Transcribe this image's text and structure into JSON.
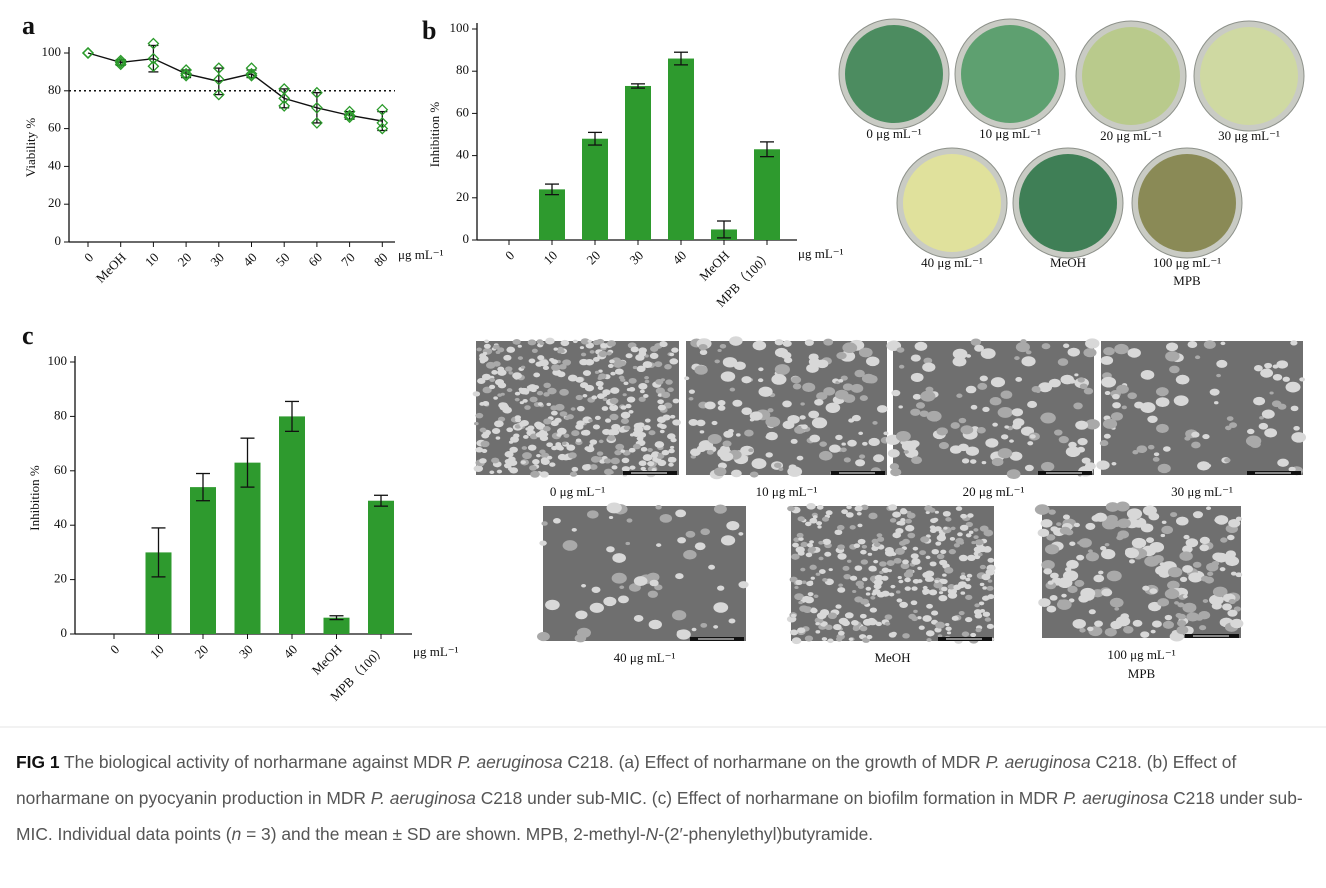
{
  "panels": [
    "a",
    "b",
    "c"
  ],
  "chart_data": [
    {
      "type": "line",
      "ylabel": "Viability %",
      "unit": "μg mL⁻¹",
      "categories": [
        "0",
        "MeOH",
        "10",
        "20",
        "30",
        "40",
        "50",
        "60",
        "70",
        "80"
      ],
      "values": [
        100,
        95,
        97,
        89,
        85,
        89,
        76,
        71,
        67,
        64
      ],
      "errors": [
        0,
        1.5,
        7,
        2,
        7,
        2,
        5,
        8,
        2,
        5
      ],
      "points": [
        [
          100,
          100,
          100
        ],
        [
          94,
          96,
          95
        ],
        [
          105,
          97,
          93
        ],
        [
          91,
          88,
          89
        ],
        [
          92,
          78,
          86
        ],
        [
          92,
          88,
          89
        ],
        [
          81,
          72,
          76
        ],
        [
          79,
          63,
          71
        ],
        [
          69,
          66,
          67
        ],
        [
          70,
          60,
          63
        ]
      ],
      "color": "#2a9a2a",
      "reference_line": 80,
      "ylim": [
        0,
        100
      ],
      "yticks": [
        0,
        20,
        40,
        60,
        80,
        100
      ]
    },
    {
      "type": "bar",
      "ylabel": "Inhibition %",
      "unit": "μg mL⁻¹",
      "categories": [
        "0",
        "10",
        "20",
        "30",
        "40",
        "MeOH",
        "MPB（100）"
      ],
      "values": [
        0,
        24,
        48,
        73,
        86,
        5,
        43
      ],
      "errors": [
        0,
        2.5,
        3,
        1,
        3,
        4,
        3.5
      ],
      "color": "#2e9a2e",
      "ylim": [
        0,
        100
      ],
      "yticks": [
        0,
        20,
        40,
        60,
        80,
        100
      ]
    },
    {
      "type": "bar",
      "ylabel": "Inhibition %",
      "unit": "μg mL⁻¹",
      "categories": [
        "0",
        "10",
        "20",
        "30",
        "40",
        "MeOH",
        "MPB（100）"
      ],
      "values": [
        0,
        30,
        54,
        63,
        80,
        6,
        49
      ],
      "errors": [
        0,
        9,
        5,
        9,
        5.5,
        0.7,
        2
      ],
      "color": "#2e9a2e",
      "ylim": [
        0,
        100
      ],
      "yticks": [
        0,
        20,
        40,
        60,
        80,
        100
      ]
    }
  ],
  "plates": [
    [
      "0 μg mL⁻¹"
    ],
    [
      "10 μg mL⁻¹"
    ],
    [
      "20 μg mL⁻¹"
    ],
    [
      "30 μg mL⁻¹"
    ],
    [
      "40 μg mL⁻¹"
    ],
    [
      "MeOH"
    ],
    [
      "100 μg mL⁻¹",
      "MPB"
    ]
  ],
  "sem": [
    [
      "0 μg mL⁻¹"
    ],
    [
      "10 μg mL⁻¹"
    ],
    [
      "20 μg mL⁻¹"
    ],
    [
      "30 μg mL⁻¹"
    ],
    [
      "40 μg mL⁻¹"
    ],
    [
      "MeOH"
    ],
    [
      "100 μg mL⁻¹",
      "MPB"
    ]
  ],
  "caption": {
    "label": "FIG 1",
    "text": [
      "The biological activity of norharmane against MDR ",
      "P. aeruginosa",
      " C218. (a) Effect of norharmane on the growth of MDR ",
      "P. aeruginosa",
      " C218. (b) Effect of norharmane on pyocyanin production in MDR ",
      "P. aeruginosa",
      " C218 under sub-MIC. (c) Effect of norharmane on biofilm formation in MDR ",
      "P. aeruginosa",
      " C218 under sub-MIC. Individual data points (",
      "n",
      " = 3) and the mean ± SD are shown. MPB, 2-methyl-",
      "N",
      "-(2′-phenylethyl)butyramide."
    ]
  }
}
